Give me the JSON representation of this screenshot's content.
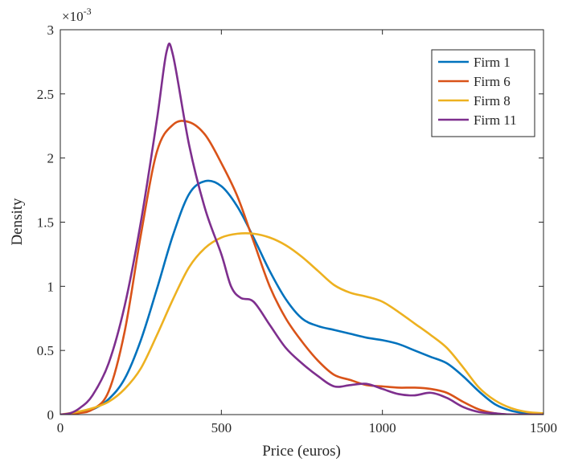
{
  "chart_data": {
    "type": "line",
    "title": "",
    "xlabel": "Price (euros)",
    "ylabel": "Density",
    "xlim": [
      0,
      1500
    ],
    "ylim": [
      0,
      0.003
    ],
    "y_exponent_base": "×10",
    "y_exponent_power": "-3",
    "x_ticks": [
      0,
      500,
      1000,
      1500
    ],
    "x_tick_labels": [
      "0",
      "500",
      "1000",
      "1500"
    ],
    "y_ticks": [
      0,
      0.0005,
      0.001,
      0.0015,
      0.002,
      0.0025,
      0.003
    ],
    "y_tick_labels": [
      "0",
      "0.5",
      "1",
      "1.5",
      "2",
      "2.5",
      "3"
    ],
    "grid": false,
    "legend_position": "top-right",
    "series": [
      {
        "name": "Firm 1",
        "color": "#0072BD",
        "points": [
          [
            0,
            0
          ],
          [
            50,
            1e-05
          ],
          [
            100,
            4e-05
          ],
          [
            150,
            0.00012
          ],
          [
            200,
            0.00028
          ],
          [
            250,
            0.00058
          ],
          [
            300,
            0.00098
          ],
          [
            350,
            0.0014
          ],
          [
            400,
            0.00172
          ],
          [
            450,
            0.00182
          ],
          [
            500,
            0.00178
          ],
          [
            550,
            0.00162
          ],
          [
            600,
            0.00138
          ],
          [
            650,
            0.00112
          ],
          [
            700,
            0.0009
          ],
          [
            750,
            0.00075
          ],
          [
            800,
            0.00069
          ],
          [
            850,
            0.00066
          ],
          [
            900,
            0.00063
          ],
          [
            950,
            0.0006
          ],
          [
            1000,
            0.00058
          ],
          [
            1050,
            0.00055
          ],
          [
            1100,
            0.0005
          ],
          [
            1150,
            0.00045
          ],
          [
            1200,
            0.0004
          ],
          [
            1250,
            0.0003
          ],
          [
            1300,
            0.00018
          ],
          [
            1350,
            8e-05
          ],
          [
            1400,
            3e-05
          ],
          [
            1450,
            1e-05
          ],
          [
            1500,
            0
          ]
        ]
      },
      {
        "name": "Firm 6",
        "color": "#D95319",
        "points": [
          [
            0,
            0
          ],
          [
            50,
            1e-05
          ],
          [
            100,
            4e-05
          ],
          [
            150,
            0.00018
          ],
          [
            200,
            0.00065
          ],
          [
            250,
            0.0014
          ],
          [
            300,
            0.00205
          ],
          [
            350,
            0.00226
          ],
          [
            400,
            0.00228
          ],
          [
            450,
            0.00218
          ],
          [
            500,
            0.00196
          ],
          [
            550,
            0.0017
          ],
          [
            600,
            0.00135
          ],
          [
            650,
            0.001
          ],
          [
            700,
            0.00075
          ],
          [
            750,
            0.00057
          ],
          [
            800,
            0.00042
          ],
          [
            850,
            0.00031
          ],
          [
            900,
            0.00027
          ],
          [
            950,
            0.00023
          ],
          [
            1000,
            0.00022
          ],
          [
            1050,
            0.00021
          ],
          [
            1100,
            0.00021
          ],
          [
            1150,
            0.0002
          ],
          [
            1200,
            0.00017
          ],
          [
            1250,
            0.0001
          ],
          [
            1300,
            4e-05
          ],
          [
            1350,
            1e-05
          ],
          [
            1400,
            0
          ],
          [
            1500,
            0
          ]
        ]
      },
      {
        "name": "Firm 8",
        "color": "#EDB120",
        "points": [
          [
            0,
            0
          ],
          [
            50,
            2e-05
          ],
          [
            100,
            5e-05
          ],
          [
            150,
            0.0001
          ],
          [
            200,
            0.0002
          ],
          [
            250,
            0.00036
          ],
          [
            300,
            0.00062
          ],
          [
            350,
            0.0009
          ],
          [
            400,
            0.00115
          ],
          [
            450,
            0.0013
          ],
          [
            500,
            0.00138
          ],
          [
            550,
            0.00141
          ],
          [
            600,
            0.00141
          ],
          [
            650,
            0.00138
          ],
          [
            700,
            0.00132
          ],
          [
            750,
            0.00123
          ],
          [
            800,
            0.00112
          ],
          [
            850,
            0.00101
          ],
          [
            900,
            0.00095
          ],
          [
            950,
            0.00092
          ],
          [
            1000,
            0.00088
          ],
          [
            1050,
            0.0008
          ],
          [
            1100,
            0.00071
          ],
          [
            1150,
            0.00062
          ],
          [
            1200,
            0.00052
          ],
          [
            1250,
            0.00037
          ],
          [
            1300,
            0.00021
          ],
          [
            1350,
            0.00011
          ],
          [
            1400,
            5e-05
          ],
          [
            1450,
            2e-05
          ],
          [
            1500,
            1e-05
          ]
        ]
      },
      {
        "name": "Firm 11",
        "color": "#7E2F8E",
        "points": [
          [
            0,
            0
          ],
          [
            30,
            1e-05
          ],
          [
            60,
            5e-05
          ],
          [
            100,
            0.00015
          ],
          [
            150,
            0.0004
          ],
          [
            200,
            0.00085
          ],
          [
            250,
            0.0015
          ],
          [
            300,
            0.0023
          ],
          [
            330,
            0.00283
          ],
          [
            350,
            0.0028
          ],
          [
            400,
            0.0021
          ],
          [
            450,
            0.0016
          ],
          [
            500,
            0.00125
          ],
          [
            530,
            0.001
          ],
          [
            560,
            0.00091
          ],
          [
            600,
            0.00088
          ],
          [
            650,
            0.0007
          ],
          [
            700,
            0.00052
          ],
          [
            750,
            0.0004
          ],
          [
            800,
            0.0003
          ],
          [
            850,
            0.00022
          ],
          [
            900,
            0.00023
          ],
          [
            950,
            0.00024
          ],
          [
            1000,
            0.0002
          ],
          [
            1050,
            0.00016
          ],
          [
            1100,
            0.00015
          ],
          [
            1150,
            0.00017
          ],
          [
            1200,
            0.00013
          ],
          [
            1250,
            6e-05
          ],
          [
            1300,
            2e-05
          ],
          [
            1350,
            1e-05
          ],
          [
            1400,
            0
          ],
          [
            1500,
            0
          ]
        ]
      }
    ]
  }
}
